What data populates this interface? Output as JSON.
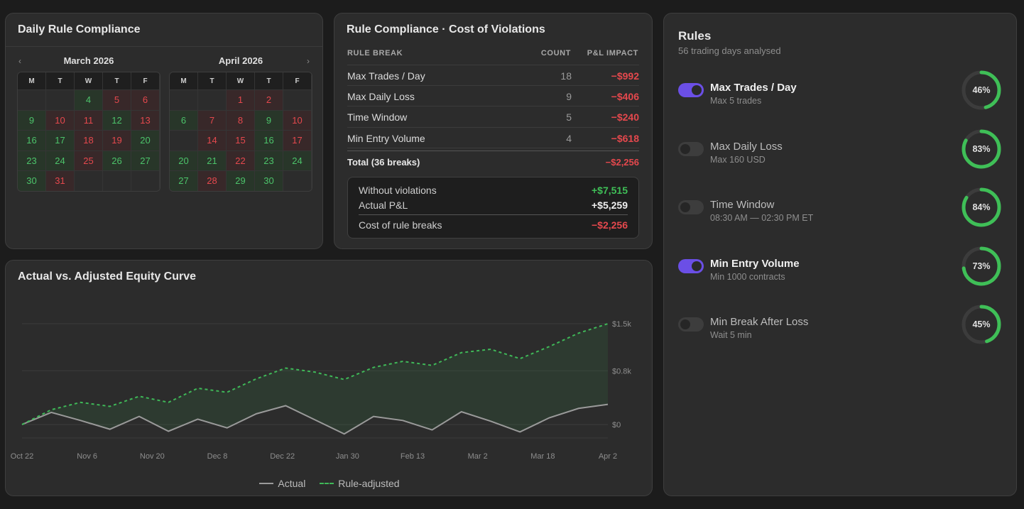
{
  "calendar": {
    "title": "Daily Rule Compliance",
    "prev_arrow": "‹",
    "next_arrow": "›",
    "weekdays": [
      "M",
      "T",
      "W",
      "T",
      "F"
    ],
    "months": [
      {
        "label": "March 2026",
        "days": [
          {
            "d": "",
            "s": "e"
          },
          {
            "d": "",
            "s": "e"
          },
          {
            "d": "4",
            "s": "g"
          },
          {
            "d": "5",
            "s": "r"
          },
          {
            "d": "6",
            "s": "r"
          },
          {
            "d": "9",
            "s": "g"
          },
          {
            "d": "10",
            "s": "r"
          },
          {
            "d": "11",
            "s": "r"
          },
          {
            "d": "12",
            "s": "g"
          },
          {
            "d": "13",
            "s": "r"
          },
          {
            "d": "16",
            "s": "g"
          },
          {
            "d": "17",
            "s": "g"
          },
          {
            "d": "18",
            "s": "r"
          },
          {
            "d": "19",
            "s": "r"
          },
          {
            "d": "20",
            "s": "g"
          },
          {
            "d": "23",
            "s": "g"
          },
          {
            "d": "24",
            "s": "g"
          },
          {
            "d": "25",
            "s": "r"
          },
          {
            "d": "26",
            "s": "g"
          },
          {
            "d": "27",
            "s": "g"
          },
          {
            "d": "30",
            "s": "g"
          },
          {
            "d": "31",
            "s": "r"
          },
          {
            "d": "",
            "s": "e"
          },
          {
            "d": "",
            "s": "e"
          },
          {
            "d": "",
            "s": "e"
          }
        ]
      },
      {
        "label": "April 2026",
        "days": [
          {
            "d": "",
            "s": "e"
          },
          {
            "d": "",
            "s": "e"
          },
          {
            "d": "1",
            "s": "r"
          },
          {
            "d": "2",
            "s": "r"
          },
          {
            "d": "",
            "s": "e"
          },
          {
            "d": "6",
            "s": "g"
          },
          {
            "d": "7",
            "s": "r"
          },
          {
            "d": "8",
            "s": "r"
          },
          {
            "d": "9",
            "s": "g"
          },
          {
            "d": "10",
            "s": "r"
          },
          {
            "d": "",
            "s": "e"
          },
          {
            "d": "14",
            "s": "r"
          },
          {
            "d": "15",
            "s": "r"
          },
          {
            "d": "16",
            "s": "g"
          },
          {
            "d": "17",
            "s": "r"
          },
          {
            "d": "20",
            "s": "g"
          },
          {
            "d": "21",
            "s": "g"
          },
          {
            "d": "22",
            "s": "r"
          },
          {
            "d": "23",
            "s": "g"
          },
          {
            "d": "24",
            "s": "g"
          },
          {
            "d": "27",
            "s": "g"
          },
          {
            "d": "28",
            "s": "r"
          },
          {
            "d": "29",
            "s": "g"
          },
          {
            "d": "30",
            "s": "g"
          },
          {
            "d": "",
            "s": "e"
          }
        ]
      }
    ]
  },
  "violations": {
    "title": "Rule Compliance · Cost of Violations",
    "headers": {
      "rule": "RULE BREAK",
      "count": "COUNT",
      "impact": "P&L IMPACT"
    },
    "rows": [
      {
        "name": "Max Trades / Day",
        "count": "18",
        "impact": "−$992"
      },
      {
        "name": "Max Daily Loss",
        "count": "9",
        "impact": "−$406"
      },
      {
        "name": "Time Window",
        "count": "5",
        "impact": "−$240"
      },
      {
        "name": "Min Entry Volume",
        "count": "4",
        "impact": "−$618"
      }
    ],
    "total_label": "Total (36 breaks)",
    "total_value": "−$2,256",
    "summary": {
      "without_label": "Without violations",
      "without_value": "+$7,515",
      "actual_label": "Actual P&L",
      "actual_value": "+$5,259",
      "cost_label": "Cost of rule breaks",
      "cost_value": "−$2,256"
    }
  },
  "equity": {
    "title": "Actual vs. Adjusted Equity Curve",
    "legend_actual": "Actual",
    "legend_adjusted": "Rule-adjusted",
    "color_actual": "#9a9a9a",
    "color_adjusted": "#3fb858"
  },
  "chart_data": {
    "type": "line",
    "title": "Actual vs. Adjusted Equity Curve",
    "x_ticks": [
      "Oct 22",
      "Nov 6",
      "Nov 20",
      "Dec 8",
      "Dec 22",
      "Jan 30",
      "Feb 13",
      "Mar 2",
      "Mar 18",
      "Apr 2"
    ],
    "y_ticks": [
      "$1.5k",
      "$0.8k",
      "$0"
    ],
    "ylim": [
      -0.3,
      1.5
    ],
    "series": [
      {
        "name": "Actual",
        "values": [
          0,
          0.18,
          0.06,
          -0.07,
          0.12,
          -0.1,
          0.08,
          -0.05,
          0.16,
          0.28,
          0.07,
          -0.14,
          0.12,
          0.06,
          -0.08,
          0.19,
          0.05,
          -0.11,
          0.1,
          0.24,
          0.3
        ]
      },
      {
        "name": "Rule-adjusted",
        "values": [
          0,
          0.22,
          0.33,
          0.27,
          0.42,
          0.33,
          0.54,
          0.48,
          0.68,
          0.84,
          0.78,
          0.67,
          0.85,
          0.94,
          0.88,
          1.07,
          1.12,
          0.98,
          1.16,
          1.36,
          1.5
        ]
      }
    ],
    "grid": true,
    "legend": "bottom-center"
  },
  "rules": {
    "title": "Rules",
    "subtitle": "56 trading days analysed",
    "ring_color": "#3fbf57",
    "ring_track": "#3c3c3c",
    "items": [
      {
        "name": "Max Trades / Day",
        "desc": "Max 5 trades",
        "enabled": true,
        "pct": 46,
        "pct_label": "46%"
      },
      {
        "name": "Max Daily Loss",
        "desc": "Max 160 USD",
        "enabled": false,
        "pct": 83,
        "pct_label": "83%"
      },
      {
        "name": "Time Window",
        "desc": "08:30 AM — 02:30 PM ET",
        "enabled": false,
        "pct": 84,
        "pct_label": "84%"
      },
      {
        "name": "Min Entry Volume",
        "desc": "Min 1000 contracts",
        "enabled": true,
        "pct": 73,
        "pct_label": "73%"
      },
      {
        "name": "Min Break After Loss",
        "desc": "Wait 5 min",
        "enabled": false,
        "pct": 45,
        "pct_label": "45%"
      }
    ]
  }
}
